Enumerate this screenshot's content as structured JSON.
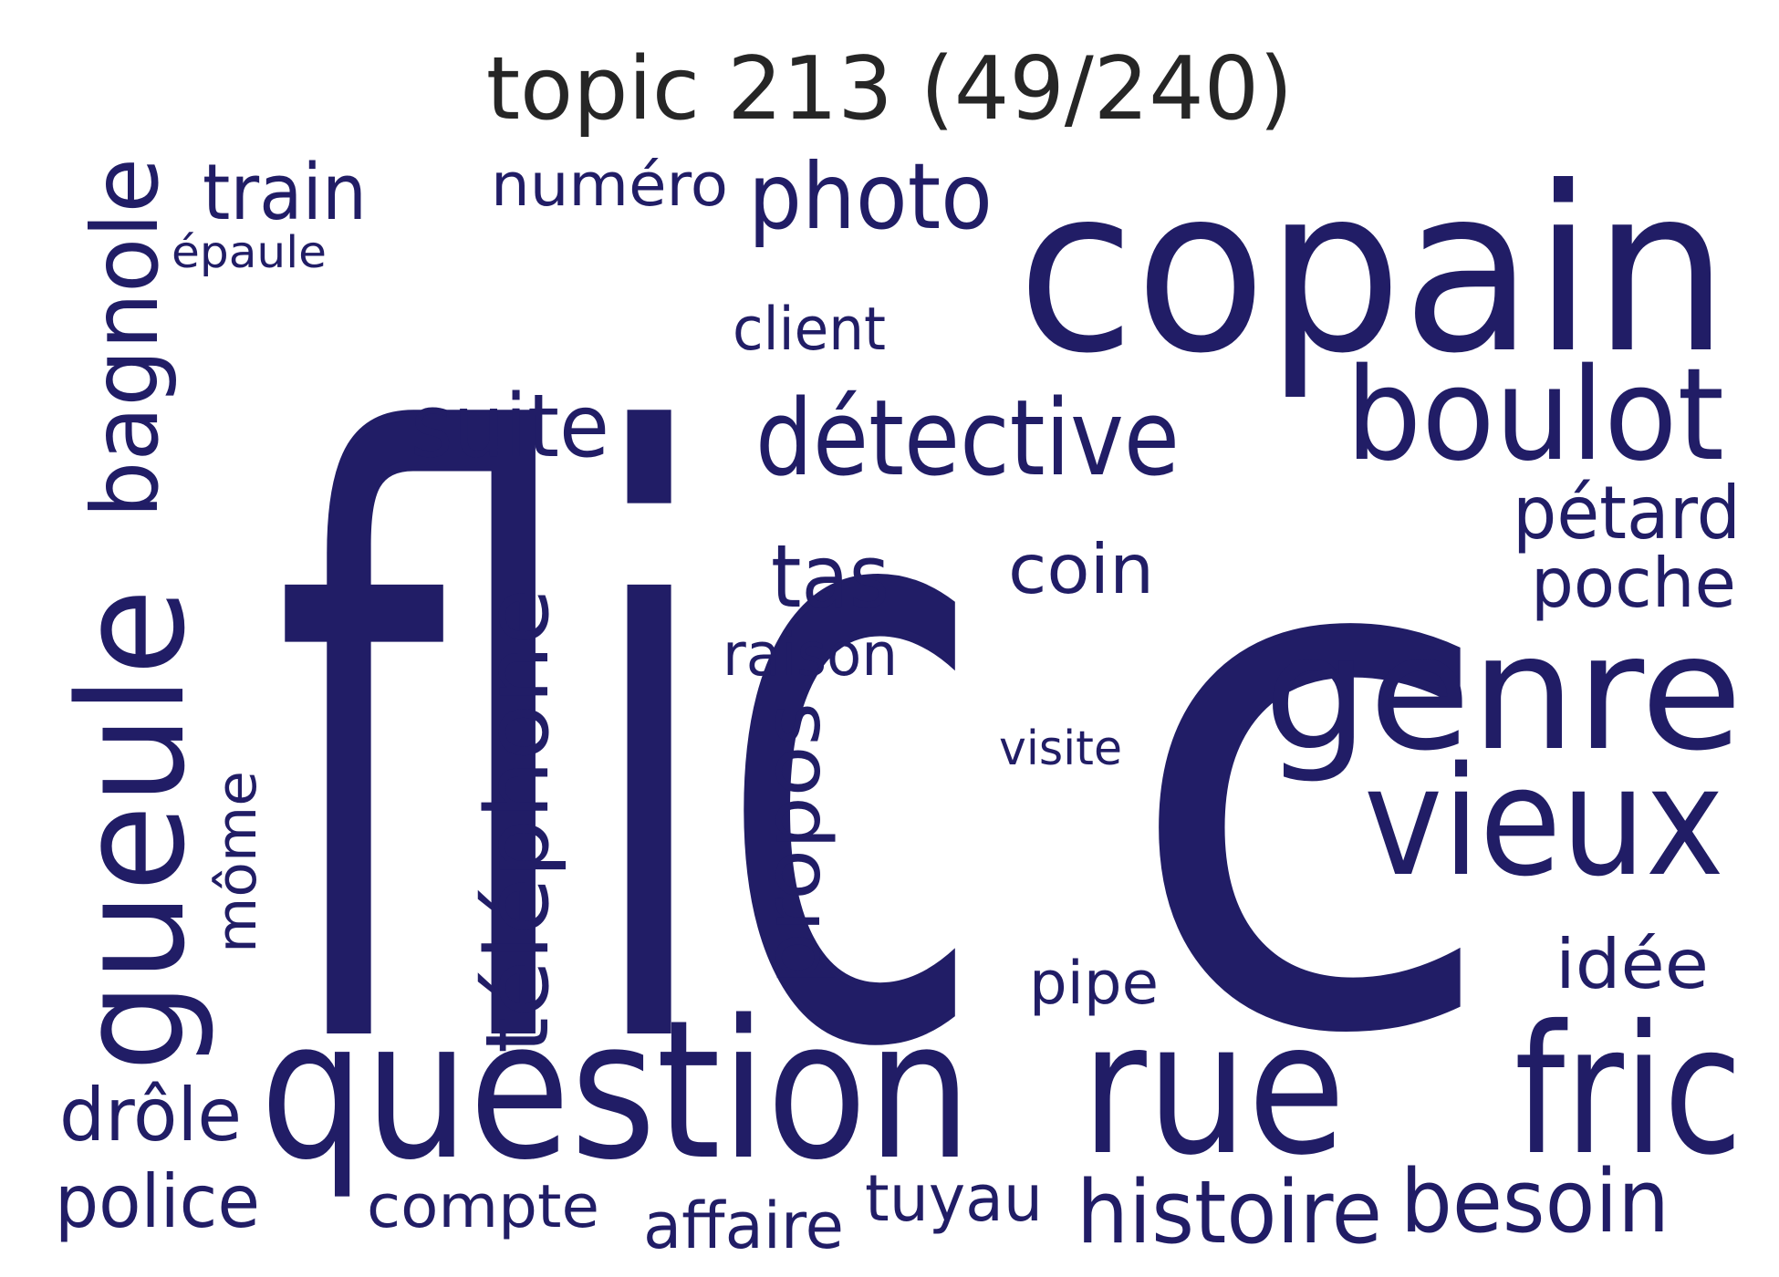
{
  "title": "topic 213 (49/240)",
  "colors": {
    "text": "#211d66",
    "title": "#262626",
    "background": "#ffffff"
  },
  "words": {
    "flic": "flic",
    "c": "c",
    "copain": "copain",
    "question": "question",
    "gueule": "gueule",
    "rue": "rue",
    "fric": "fric",
    "genre": "genre",
    "vieux": "vieux",
    "boulot": "boulot",
    "detective": "détective",
    "telephone": "téléphone",
    "bagnole": "bagnole",
    "photo": "photo",
    "suite": "suite",
    "histoire": "histoire",
    "besoin": "besoin",
    "propos": "propos",
    "tas": "tas",
    "train": "train",
    "numero": "numéro",
    "petard": "pétard",
    "poche": "poche",
    "coin": "coin",
    "idee": "idée",
    "police": "police",
    "drole": "drôle",
    "compte": "compte",
    "affaire": "affaire",
    "tuyau": "tuyau",
    "client": "client",
    "raison": "raison",
    "pipe": "pipe",
    "mome": "môme",
    "visite": "visite",
    "epaule": "épaule"
  }
}
